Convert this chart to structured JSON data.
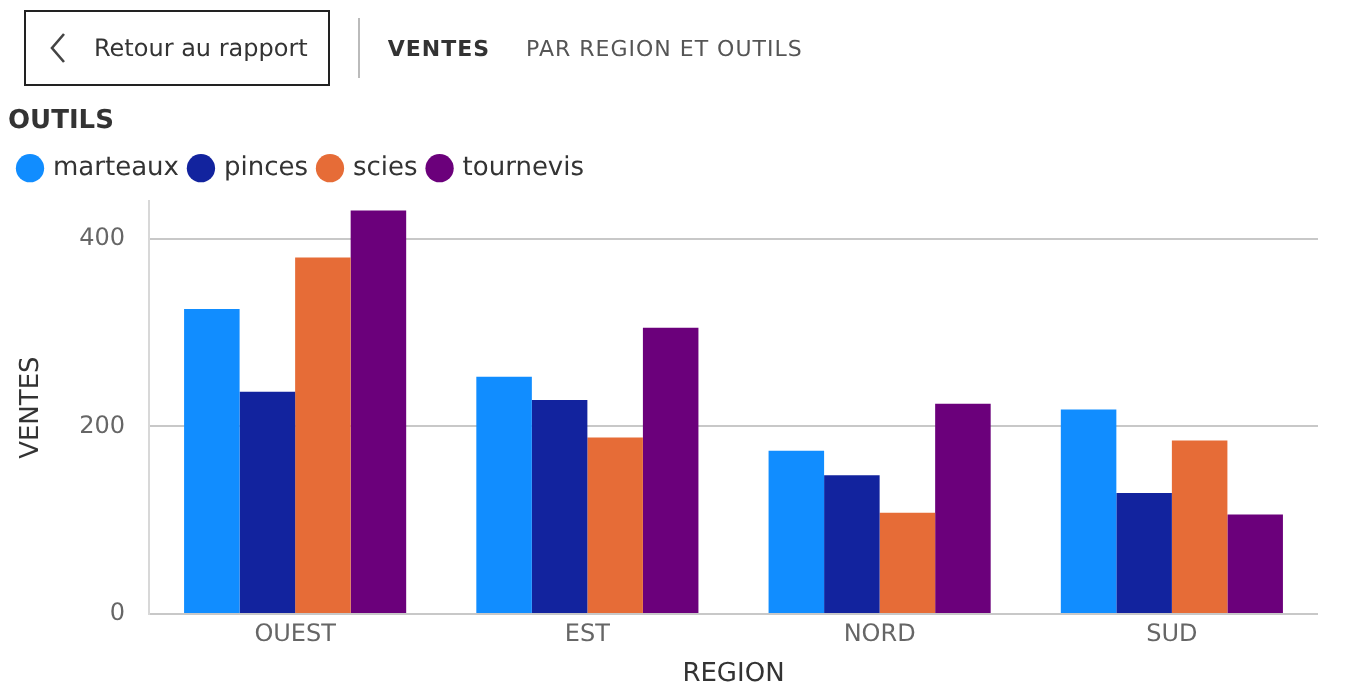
{
  "chart_data": {
    "type": "bar",
    "title": "VENTES",
    "subtitle": "PAR REGION ET OUTILS",
    "annotations": [
      "Retour au rapport"
    ],
    "xlabel": "REGION",
    "ylabel": "VENTES",
    "legend_title": "OUTILS",
    "legend": "top left",
    "grid": "y",
    "categories": [
      "OUEST",
      "EST",
      "NORD",
      "SUD"
    ],
    "series": [
      {
        "name": "marteaux",
        "color": "#118dff",
        "values": [
          325,
          253,
          174,
          218
        ]
      },
      {
        "name": "pinces",
        "color": "#12239e",
        "values": [
          237,
          228,
          148,
          129
        ]
      },
      {
        "name": "scies",
        "color": "#e66c37",
        "values": [
          380,
          188,
          108,
          185
        ]
      },
      {
        "name": "tournevis",
        "color": "#6b007b",
        "values": [
          430,
          305,
          224,
          106
        ]
      }
    ],
    "ylim": [
      0,
      440
    ],
    "yticks": [
      0,
      200,
      400
    ]
  }
}
